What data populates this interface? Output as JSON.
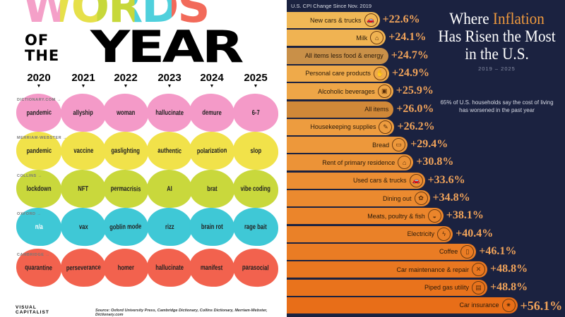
{
  "left": {
    "title_words": "WORDS",
    "title_of": "OF",
    "title_the": "THE",
    "title_year": "YEAR",
    "title_letter_colors": [
      "#f4a0c8",
      "#e6e04a",
      "#c7d83a",
      "#4fd0dc",
      "#f26a5a"
    ],
    "years": [
      "2020",
      "2021",
      "2022",
      "2023",
      "2024",
      "2025"
    ],
    "rows": [
      {
        "source": "DICTIONARY.COM",
        "color": "#f49ac8",
        "words": [
          "pandemic",
          "allyship",
          "woman",
          "hallucinate",
          "demure",
          "6-7"
        ]
      },
      {
        "source": "MERRIAM-WEBSTER",
        "color": "#f1e24a",
        "words": [
          "pandemic",
          "vaccine",
          "gaslighting",
          "authentic",
          "polarization",
          "slop"
        ]
      },
      {
        "source": "COLLINS",
        "color": "#c9d83c",
        "words": [
          "lockdown",
          "NFT",
          "permacrisis",
          "AI",
          "brat",
          "vibe coding"
        ]
      },
      {
        "source": "OXFORD",
        "color": "#3fc8d6",
        "words": [
          "n/a",
          "vax",
          "goblin mode",
          "rizz",
          "brain rot",
          "rage bait"
        ]
      },
      {
        "source": "CAMBRIDGE",
        "color": "#f2624e",
        "words": [
          "quarantine",
          "perseverance",
          "homer",
          "hallucinate",
          "manifest",
          "parasocial"
        ]
      }
    ],
    "logo": "VISUAL CAPITALIST",
    "source": "Source: Oxford University Press, Cambridge Dictionary, Collins Dictionary, Merriam-Webster, Dictionary.com"
  },
  "right": {
    "title_pre": "Where ",
    "title_highlight": "Inflation",
    "title_post": "Has Risen the Most in the U.S.",
    "years": "2019 – 2025",
    "note": "65% of U.S. households say the cost of living has worsened in the past year",
    "accent": "#f09a3e",
    "background": "#1b2240"
  },
  "chart_data": {
    "type": "bar",
    "orientation": "horizontal",
    "title": "Where Inflation Has Risen the Most in the U.S.",
    "subtitle": "U.S. CPI Change Since Nov. 2019",
    "categories": [
      "New cars & trucks",
      "Milk",
      "All items less food & energy",
      "Personal care products",
      "Alcoholic beverages",
      "All items",
      "Housekeeping supplies",
      "Bread",
      "Rent of primary residence",
      "Used cars & trucks",
      "Dining out",
      "Meats, poultry & fish",
      "Electricity",
      "Coffee",
      "Car maintenance & repair",
      "Piped gas utility",
      "Car insurance"
    ],
    "values": [
      22.6,
      24.1,
      24.7,
      24.9,
      25.9,
      26.0,
      26.2,
      29.4,
      30.8,
      33.6,
      34.8,
      38.1,
      40.4,
      46.1,
      48.8,
      48.8,
      56.1
    ],
    "labels": [
      "+22.6%",
      "+24.1%",
      "+24.7%",
      "+24.9%",
      "+25.9%",
      "+26.0%",
      "+26.2%",
      "+29.4%",
      "+30.8%",
      "+33.6%",
      "+34.8%",
      "+38.1%",
      "+40.4%",
      "+46.1%",
      "+48.8%",
      "+48.8%",
      "+56.1%"
    ],
    "icons": [
      "car-icon",
      "milk-carton-icon",
      "",
      "soap-icon",
      "beer-mug-icon",
      "",
      "spray-bottle-icon",
      "bread-icon",
      "house-icon",
      "car-icon",
      "takeout-box-icon",
      "steak-icon",
      "lightning-icon",
      "coffee-cup-icon",
      "wrench-hammer-icon",
      "gas-meter-icon",
      "car-crash-icon"
    ],
    "highlighted_aggregates": [
      "All items less food & energy",
      "All items"
    ],
    "xlim": [
      0,
      60
    ]
  }
}
